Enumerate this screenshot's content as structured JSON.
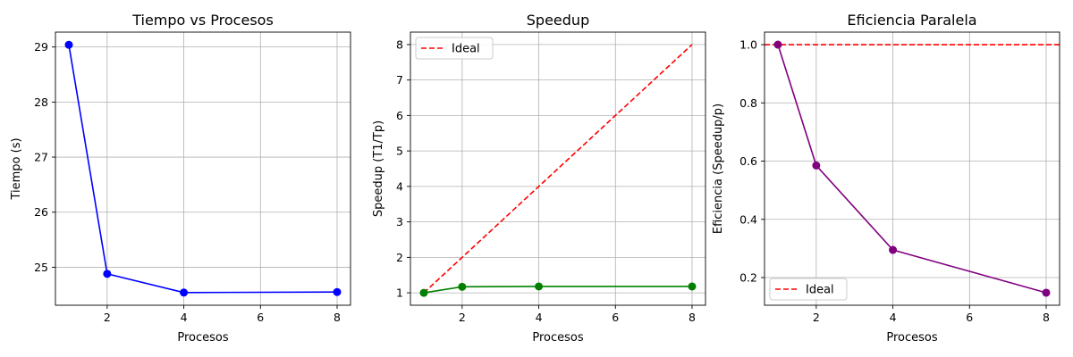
{
  "chart_data": [
    {
      "type": "line",
      "title": "Tiempo vs Procesos",
      "xlabel": "Procesos",
      "ylabel": "Tiempo (s)",
      "xlim": [
        0.65,
        8.35
      ],
      "ylim": [
        24.31,
        29.27
      ],
      "xticks": [
        2,
        4,
        6,
        8
      ],
      "yticks": [
        25,
        26,
        27,
        28,
        29
      ],
      "grid": true,
      "series": [
        {
          "x": [
            1,
            2,
            4,
            8
          ],
          "y": [
            29.04,
            24.88,
            24.54,
            24.55
          ],
          "color": "#0000ff",
          "style": "solid",
          "marker": true
        }
      ]
    },
    {
      "type": "line",
      "title": "Speedup",
      "xlabel": "Procesos",
      "ylabel": "Speedup (T1/Tp)",
      "xlim": [
        0.65,
        8.35
      ],
      "ylim": [
        0.65,
        8.35
      ],
      "xticks": [
        2,
        4,
        6,
        8
      ],
      "yticks": [
        1,
        2,
        3,
        4,
        5,
        6,
        7,
        8
      ],
      "grid": true,
      "legend": {
        "position": "top-left"
      },
      "series": [
        {
          "name": "Ideal",
          "x": [
            1,
            2,
            4,
            8
          ],
          "y": [
            1,
            2,
            4,
            8
          ],
          "color": "#ff0000",
          "style": "dashed",
          "marker": false
        },
        {
          "x": [
            1,
            2,
            4,
            8
          ],
          "y": [
            1.0,
            1.17,
            1.18,
            1.18
          ],
          "color": "#008000",
          "style": "solid",
          "marker": true
        }
      ]
    },
    {
      "type": "line",
      "title": "Eficiencia Paralela",
      "xlabel": "Procesos",
      "ylabel": "Eficiencia (Speedup/p)",
      "xlim": [
        0.65,
        8.35
      ],
      "ylim": [
        0.105,
        1.043
      ],
      "xticks": [
        2,
        4,
        6,
        8
      ],
      "yticks": [
        0.2,
        0.4,
        0.6,
        0.8,
        1.0
      ],
      "ytick_labels": [
        "0.2",
        "0.4",
        "0.6",
        "0.8",
        "1.0"
      ],
      "grid": true,
      "legend": {
        "position": "bottom-left"
      },
      "series": [
        {
          "name": "Ideal",
          "x": [
            0.65,
            8.35
          ],
          "y": [
            1.0,
            1.0
          ],
          "color": "#ff0000",
          "style": "dashed",
          "marker": false
        },
        {
          "x": [
            1,
            2,
            4,
            8
          ],
          "y": [
            1.0,
            0.585,
            0.295,
            0.148
          ],
          "color": "#800080",
          "style": "solid",
          "marker": true
        }
      ]
    }
  ]
}
